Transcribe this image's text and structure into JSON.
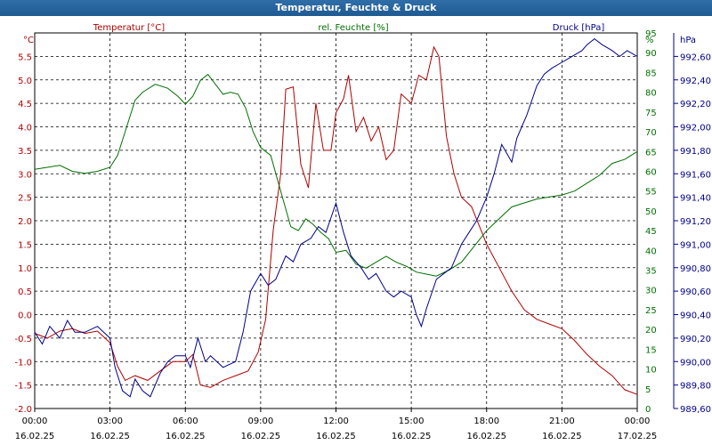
{
  "window": {
    "title": "Temperatur, Feuchte & Druck"
  },
  "chart_data": {
    "type": "line",
    "title": "Temperatur, Feuchte & Druck",
    "grid": true,
    "x_unit": "hours since 16.02.25 00:00",
    "x_ticks": [
      {
        "hours": 0,
        "time": "00:00",
        "date": "16.02.25"
      },
      {
        "hours": 3,
        "time": "03:00",
        "date": "16.02.25"
      },
      {
        "hours": 6,
        "time": "06:00",
        "date": "16.02.25"
      },
      {
        "hours": 9,
        "time": "09:00",
        "date": "16.02.25"
      },
      {
        "hours": 12,
        "time": "12:00",
        "date": "16.02.25"
      },
      {
        "hours": 15,
        "time": "15:00",
        "date": "16.02.25"
      },
      {
        "hours": 18,
        "time": "18:00",
        "date": "16.02.25"
      },
      {
        "hours": 21,
        "time": "21:00",
        "date": "16.02.25"
      },
      {
        "hours": 24,
        "time": "00:00",
        "date": "17.02.25"
      }
    ],
    "axes": {
      "temperature": {
        "label": "Temperatur [°C]",
        "unit": "°C",
        "color": "#b00000",
        "range": [
          -2.0,
          6.0
        ],
        "ticks": [
          "-2.0",
          "-1.5",
          "-1.0",
          "-0.5",
          "0.0",
          "0.5",
          "1.0",
          "1.5",
          "2.0",
          "2.5",
          "3.0",
          "3.5",
          "4.0",
          "4.5",
          "5.0",
          "5.5"
        ]
      },
      "humidity": {
        "label": "rel. Feuchte [%]",
        "unit": "%",
        "color": "#007000",
        "range": [
          0,
          95
        ],
        "ticks": [
          "0",
          "5",
          "10",
          "15",
          "20",
          "25",
          "30",
          "35",
          "40",
          "45",
          "50",
          "55",
          "60",
          "65",
          "70",
          "75",
          "80",
          "85",
          "90",
          "95"
        ]
      },
      "pressure": {
        "label": "Druck [hPa]",
        "unit": "hPa",
        "color": "#00008b",
        "range": [
          989.6,
          992.8
        ],
        "ticks": [
          "989,60",
          "989,80",
          "990,00",
          "990,20",
          "990,40",
          "990,60",
          "990,80",
          "991,00",
          "991,20",
          "991,40",
          "991,60",
          "991,80",
          "992,00",
          "992,20",
          "992,40",
          "992,60"
        ]
      }
    },
    "series": [
      {
        "name": "Temperatur [°C]",
        "axis": "temperature",
        "color": "#b00000",
        "x": [
          0,
          0.5,
          1,
          1.5,
          2,
          2.5,
          3,
          3.3,
          3.6,
          4,
          4.5,
          5,
          5.5,
          6,
          6.3,
          6.6,
          7,
          7.5,
          8,
          8.5,
          8.9,
          9.2,
          9.5,
          9.8,
          10,
          10.3,
          10.6,
          10.9,
          11.2,
          11.5,
          11.8,
          12,
          12.3,
          12.5,
          12.8,
          13.1,
          13.4,
          13.7,
          14,
          14.3,
          14.6,
          15,
          15.3,
          15.6,
          15.9,
          16.1,
          16.4,
          16.7,
          17,
          17.4,
          18,
          18.5,
          19,
          19.5,
          20,
          20.5,
          21,
          21.5,
          22,
          22.5,
          23,
          23.5,
          24
        ],
        "y": [
          -0.4,
          -0.5,
          -0.35,
          -0.3,
          -0.4,
          -0.35,
          -0.6,
          -1.1,
          -1.4,
          -1.3,
          -1.4,
          -1.2,
          -1.0,
          -1.0,
          -0.85,
          -1.5,
          -1.55,
          -1.4,
          -1.3,
          -1.2,
          -0.8,
          -0.1,
          1.8,
          3.0,
          4.8,
          4.85,
          3.2,
          2.7,
          4.5,
          3.5,
          3.5,
          4.3,
          4.6,
          5.1,
          3.9,
          4.2,
          3.7,
          4.0,
          3.3,
          3.5,
          4.7,
          4.5,
          5.1,
          5.0,
          5.7,
          5.5,
          3.8,
          3.0,
          2.5,
          2.3,
          1.5,
          1.0,
          0.5,
          0.1,
          -0.1,
          -0.2,
          -0.3,
          -0.55,
          -0.85,
          -1.1,
          -1.3,
          -1.6,
          -1.7
        ]
      },
      {
        "name": "rel. Feuchte [%]",
        "axis": "humidity",
        "color": "#007000",
        "x": [
          0,
          0.5,
          1,
          1.5,
          2,
          2.5,
          3,
          3.3,
          3.6,
          4,
          4.3,
          4.8,
          5.3,
          5.7,
          6,
          6.3,
          6.6,
          6.9,
          7.2,
          7.5,
          7.8,
          8.1,
          8.4,
          8.7,
          9,
          9.4,
          9.8,
          10.2,
          10.5,
          10.8,
          11.1,
          11.4,
          11.7,
          12,
          12.4,
          12.8,
          13.2,
          13.6,
          14,
          14.4,
          14.8,
          15.2,
          15.6,
          16,
          16.5,
          17,
          17.5,
          18,
          18.5,
          19,
          19.5,
          20,
          20.5,
          21,
          21.5,
          22,
          22.5,
          23,
          23.5,
          24
        ],
        "y": [
          60.5,
          61,
          61.5,
          60,
          59.5,
          60,
          61,
          64,
          70,
          78,
          80,
          82,
          81,
          79,
          77,
          79,
          83,
          84.5,
          82,
          79.5,
          80,
          79.5,
          76,
          70,
          66,
          64,
          55,
          46,
          45,
          48,
          46.5,
          44.5,
          43,
          39.5,
          40,
          36.5,
          35.5,
          37,
          38.5,
          37,
          36,
          34.5,
          34,
          33.5,
          35,
          37,
          41,
          45,
          48,
          51,
          52,
          53,
          53.5,
          54,
          55,
          57,
          59,
          62,
          63,
          65
        ]
      },
      {
        "name": "Druck [hPa]",
        "axis": "pressure",
        "color": "#00008b",
        "x": [
          0,
          0.3,
          0.6,
          1,
          1.3,
          1.6,
          2,
          2.5,
          3,
          3.2,
          3.5,
          3.8,
          4,
          4.3,
          4.6,
          5,
          5.3,
          5.6,
          6,
          6.2,
          6.5,
          6.8,
          7,
          7.5,
          8,
          8.3,
          8.6,
          9,
          9.3,
          9.6,
          10,
          10.3,
          10.6,
          11,
          11.3,
          11.6,
          12,
          12.3,
          12.6,
          13,
          13.3,
          13.6,
          14,
          14.3,
          14.6,
          15,
          15.2,
          15.4,
          15.6,
          16,
          16.3,
          16.6,
          17,
          17.3,
          17.6,
          18,
          18.3,
          18.6,
          19,
          19.2,
          19.4,
          19.6,
          20,
          20.3,
          20.6,
          21,
          21.4,
          21.8,
          22,
          22.3,
          22.6,
          23,
          23.3,
          23.6,
          24
        ],
        "y": [
          990.25,
          990.15,
          990.3,
          990.2,
          990.35,
          990.25,
          990.25,
          990.3,
          990.2,
          989.95,
          989.75,
          989.7,
          989.85,
          989.75,
          989.7,
          989.9,
          990.0,
          990.05,
          990.05,
          989.95,
          990.2,
          990.0,
          990.05,
          989.95,
          990.0,
          990.25,
          990.6,
          990.75,
          990.65,
          990.7,
          990.9,
          990.85,
          991.0,
          991.05,
          991.15,
          991.1,
          991.35,
          991.1,
          990.9,
          990.8,
          990.7,
          990.75,
          990.6,
          990.55,
          990.6,
          990.55,
          990.4,
          990.3,
          990.45,
          990.7,
          990.75,
          990.8,
          991.0,
          991.1,
          991.2,
          991.4,
          991.6,
          991.85,
          991.7,
          991.9,
          992.0,
          992.1,
          992.35,
          992.45,
          992.5,
          992.55,
          992.6,
          992.65,
          992.7,
          992.75,
          992.7,
          992.65,
          992.6,
          992.65,
          992.6
        ]
      }
    ]
  }
}
